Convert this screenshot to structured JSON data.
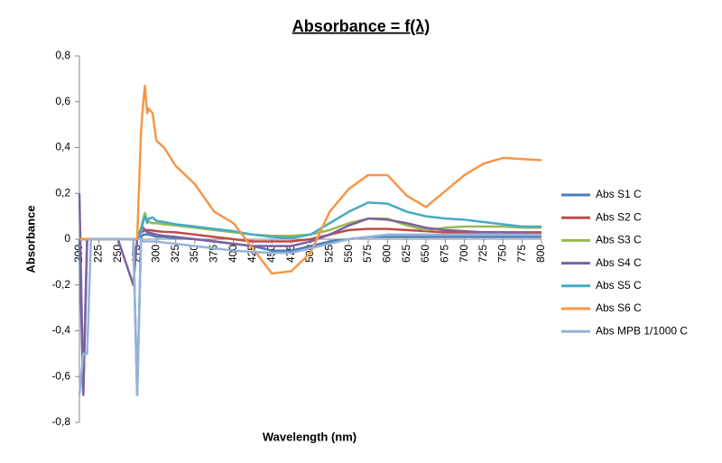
{
  "chart_data": {
    "type": "line",
    "title": "Absorbance = f(λ)",
    "x_label": "Wavelength (nm)",
    "y_label": "Absorbance",
    "x": [
      200,
      205,
      210,
      215,
      220,
      250,
      270,
      275,
      280,
      283,
      285,
      288,
      290,
      295,
      300,
      310,
      325,
      350,
      375,
      400,
      425,
      450,
      475,
      500,
      525,
      550,
      575,
      600,
      625,
      650,
      675,
      700,
      725,
      750,
      775,
      800
    ],
    "series": [
      {
        "name": "Abs S1 C",
        "color": "#4a7ebb",
        "values": [
          0,
          -0.68,
          0,
          0,
          0,
          0,
          0,
          -0.68,
          0.01,
          0.02,
          0.02,
          0.02,
          0.02,
          0.015,
          0.01,
          0.01,
          0.005,
          0,
          -0.01,
          -0.02,
          -0.03,
          -0.05,
          -0.05,
          -0.03,
          -0.01,
          0,
          0.01,
          0.01,
          0.01,
          0.01,
          0.01,
          0.01,
          0.01,
          0.01,
          0.01,
          0.01
        ]
      },
      {
        "name": "Abs S2 C",
        "color": "#be4b48",
        "values": [
          0,
          0,
          0,
          0,
          0,
          0,
          0,
          0,
          0.03,
          0.035,
          0.04,
          0.04,
          0.04,
          0.038,
          0.035,
          0.032,
          0.03,
          0.02,
          0.01,
          0,
          -0.01,
          -0.01,
          -0.01,
          0,
          0.02,
          0.04,
          0.045,
          0.045,
          0.04,
          0.035,
          0.03,
          0.03,
          0.03,
          0.03,
          0.03,
          0.03
        ]
      },
      {
        "name": "Abs S3 C",
        "color": "#98b954",
        "values": [
          0,
          0,
          0,
          0,
          0,
          0,
          0,
          0,
          0.05,
          0.09,
          0.115,
          0.08,
          0.075,
          0.07,
          0.07,
          0.065,
          0.06,
          0.05,
          0.04,
          0.03,
          0.02,
          0.015,
          0.015,
          0.02,
          0.04,
          0.07,
          0.09,
          0.09,
          0.06,
          0.04,
          0.05,
          0.055,
          0.055,
          0.055,
          0.05,
          0.05
        ]
      },
      {
        "name": "Abs S4 C",
        "color": "#7d60a0",
        "values": [
          0.2,
          -0.68,
          0,
          0,
          0,
          0,
          -0.2,
          0,
          0.04,
          0.05,
          0.04,
          0.03,
          0.03,
          0.025,
          0.02,
          0.015,
          0.01,
          0,
          -0.01,
          -0.02,
          -0.03,
          -0.03,
          -0.03,
          -0.01,
          0.02,
          0.06,
          0.09,
          0.085,
          0.07,
          0.05,
          0.04,
          0.035,
          0.03,
          0.03,
          0.025,
          0.02
        ]
      },
      {
        "name": "Abs S5 C",
        "color": "#46aac5",
        "values": [
          0,
          0,
          0,
          0,
          0,
          0,
          0,
          0,
          0.03,
          0.08,
          0.1,
          0.07,
          0.09,
          0.095,
          0.08,
          0.075,
          0.065,
          0.055,
          0.045,
          0.035,
          0.02,
          0.01,
          0.005,
          0.02,
          0.07,
          0.12,
          0.16,
          0.155,
          0.12,
          0.1,
          0.09,
          0.085,
          0.075,
          0.065,
          0.055,
          0.055
        ]
      },
      {
        "name": "Abs S6 C",
        "color": "#f79646",
        "values": [
          0,
          0,
          0,
          0,
          0,
          0,
          0,
          0,
          0.47,
          0.6,
          0.67,
          0.55,
          0.57,
          0.55,
          0.43,
          0.4,
          0.32,
          0.24,
          0.12,
          0.07,
          -0.04,
          -0.15,
          -0.14,
          -0.06,
          0.12,
          0.22,
          0.28,
          0.28,
          0.19,
          0.14,
          0.21,
          0.28,
          0.33,
          0.355,
          0.35,
          0.345
        ]
      },
      {
        "name": "Abs MPB 1/1000 C",
        "color": "#95b3d7",
        "values": [
          -0.68,
          -0.5,
          -0.5,
          0,
          0,
          0,
          0,
          -0.68,
          0,
          -0.01,
          -0.01,
          -0.01,
          -0.01,
          -0.01,
          -0.01,
          -0.015,
          -0.02,
          -0.03,
          -0.04,
          -0.05,
          -0.055,
          -0.06,
          -0.06,
          -0.04,
          -0.02,
          0,
          0.01,
          0.02,
          0.02,
          0.02,
          0.02,
          0.02,
          0.02,
          0.02,
          0.02,
          0.02
        ]
      }
    ],
    "xlim": [
      200,
      800
    ],
    "xticks": [
      200,
      225,
      250,
      275,
      300,
      325,
      350,
      375,
      400,
      425,
      450,
      475,
      500,
      525,
      550,
      575,
      600,
      625,
      650,
      675,
      700,
      725,
      750,
      775,
      800
    ],
    "ylim": [
      -0.8,
      0.8
    ],
    "yticks": [
      {
        "value": -0.8,
        "label": "-0,8"
      },
      {
        "value": -0.6,
        "label": "-0,6"
      },
      {
        "value": -0.4,
        "label": "-0,4"
      },
      {
        "value": -0.2,
        "label": "-0,2"
      },
      0,
      {
        "value": 0.2,
        "label": "0,2"
      },
      {
        "value": 0.4,
        "label": "0,4"
      },
      {
        "value": 0.6,
        "label": "0,6"
      },
      {
        "value": 0.8,
        "label": "0,8"
      }
    ],
    "grid": false,
    "legend": "right"
  }
}
